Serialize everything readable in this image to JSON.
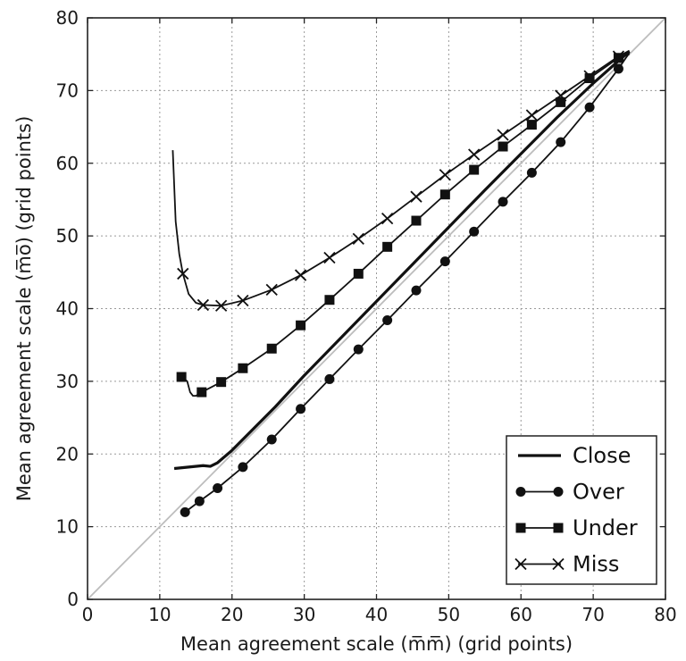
{
  "chart_data": {
    "type": "line",
    "title": "",
    "xlabel": "Mean agreement scale (m̅m̅) (grid points)",
    "ylabel": "Mean agreement scale (m̅o̅) (grid points)",
    "xlim": [
      0,
      80
    ],
    "ylim": [
      0,
      80
    ],
    "xticks": [
      0,
      10,
      20,
      30,
      40,
      50,
      60,
      70,
      80
    ],
    "yticks": [
      0,
      10,
      20,
      30,
      40,
      50,
      60,
      70,
      80
    ],
    "grid": true,
    "legend_position": "bottom-right",
    "reference_line": {
      "x": [
        0,
        80
      ],
      "y": [
        0,
        80
      ]
    },
    "series": [
      {
        "name": "Close",
        "marker": "none",
        "line": {
          "x": [
            12.0,
            14.0,
            16.0,
            17.0,
            18.0,
            20.0,
            22.0,
            26.0,
            30.0,
            35.0,
            40.0,
            45.0,
            50.0,
            55.0,
            60.0,
            65.0,
            70.0,
            75.0
          ],
          "y": [
            18.0,
            18.2,
            18.4,
            18.3,
            18.8,
            20.5,
            22.5,
            26.5,
            30.8,
            35.9,
            41.0,
            46.1,
            51.2,
            56.3,
            61.3,
            66.3,
            71.0,
            75.4
          ]
        },
        "points": {
          "x": [],
          "y": []
        }
      },
      {
        "name": "Over",
        "marker": "circle",
        "line": {
          "x": [
            13.5,
            15.5,
            18.0,
            21.5,
            25.5,
            29.5,
            33.5,
            37.5,
            41.5,
            45.5,
            49.5,
            53.5,
            57.5,
            61.5,
            65.5,
            69.5,
            73.5,
            75.0
          ],
          "y": [
            12.0,
            13.5,
            15.3,
            18.2,
            22.0,
            26.2,
            30.3,
            34.4,
            38.4,
            42.5,
            46.5,
            50.6,
            54.7,
            58.7,
            62.9,
            67.7,
            73.0,
            75.2
          ]
        },
        "points": {
          "x": [
            13.5,
            15.5,
            18.0,
            21.5,
            25.5,
            29.5,
            33.5,
            37.5,
            41.5,
            45.5,
            49.5,
            53.5,
            57.5,
            61.5,
            65.5,
            69.5,
            73.5
          ],
          "y": [
            12.0,
            13.5,
            15.3,
            18.2,
            22.0,
            26.2,
            30.3,
            34.4,
            38.4,
            42.5,
            46.5,
            50.6,
            54.7,
            58.7,
            62.9,
            67.7,
            73.0
          ]
        }
      },
      {
        "name": "Under",
        "marker": "square",
        "line": {
          "x": [
            13.0,
            13.8,
            14.2,
            14.6,
            15.0,
            15.8,
            18.5,
            21.5,
            25.5,
            29.5,
            33.5,
            37.5,
            41.5,
            45.5,
            49.5,
            53.5,
            57.5,
            61.5,
            65.5,
            69.5,
            73.5,
            75.0
          ],
          "y": [
            30.6,
            30.0,
            28.5,
            28.0,
            28.0,
            28.5,
            29.9,
            31.8,
            34.5,
            37.7,
            41.2,
            44.8,
            48.5,
            52.1,
            55.7,
            59.1,
            62.3,
            65.3,
            68.4,
            71.7,
            74.5,
            75.0
          ]
        },
        "points": {
          "x": [
            13.0,
            15.8,
            18.5,
            21.5,
            25.5,
            29.5,
            33.5,
            37.5,
            41.5,
            45.5,
            49.5,
            53.5,
            57.5,
            61.5,
            65.5,
            69.5,
            73.5
          ],
          "y": [
            30.6,
            28.5,
            29.9,
            31.8,
            34.5,
            37.7,
            41.2,
            44.8,
            48.5,
            52.1,
            55.7,
            59.1,
            62.3,
            65.3,
            68.4,
            71.7,
            74.5
          ]
        }
      },
      {
        "name": "Miss",
        "marker": "x",
        "line": {
          "x": [
            11.8,
            12.2,
            12.7,
            13.2,
            14.0,
            15.0,
            16.0,
            18.5,
            21.5,
            25.5,
            29.5,
            33.5,
            37.5,
            41.5,
            45.5,
            49.5,
            53.5,
            57.5,
            61.5,
            65.5,
            69.5,
            73.5,
            75.0
          ],
          "y": [
            61.8,
            52.0,
            47.5,
            44.8,
            42.0,
            40.8,
            40.5,
            40.4,
            41.1,
            42.6,
            44.6,
            47.0,
            49.6,
            52.4,
            55.4,
            58.4,
            61.2,
            63.9,
            66.6,
            69.3,
            72.0,
            74.7,
            75.5
          ]
        },
        "points": {
          "x": [
            13.2,
            16.0,
            18.5,
            21.5,
            25.5,
            29.5,
            33.5,
            37.5,
            41.5,
            45.5,
            49.5,
            53.5,
            57.5,
            61.5,
            65.5,
            69.5,
            73.5
          ],
          "y": [
            44.8,
            40.5,
            40.4,
            41.1,
            42.6,
            44.6,
            47.0,
            49.6,
            52.4,
            55.4,
            58.4,
            61.2,
            63.9,
            66.6,
            69.3,
            72.0,
            74.7
          ]
        }
      }
    ]
  }
}
